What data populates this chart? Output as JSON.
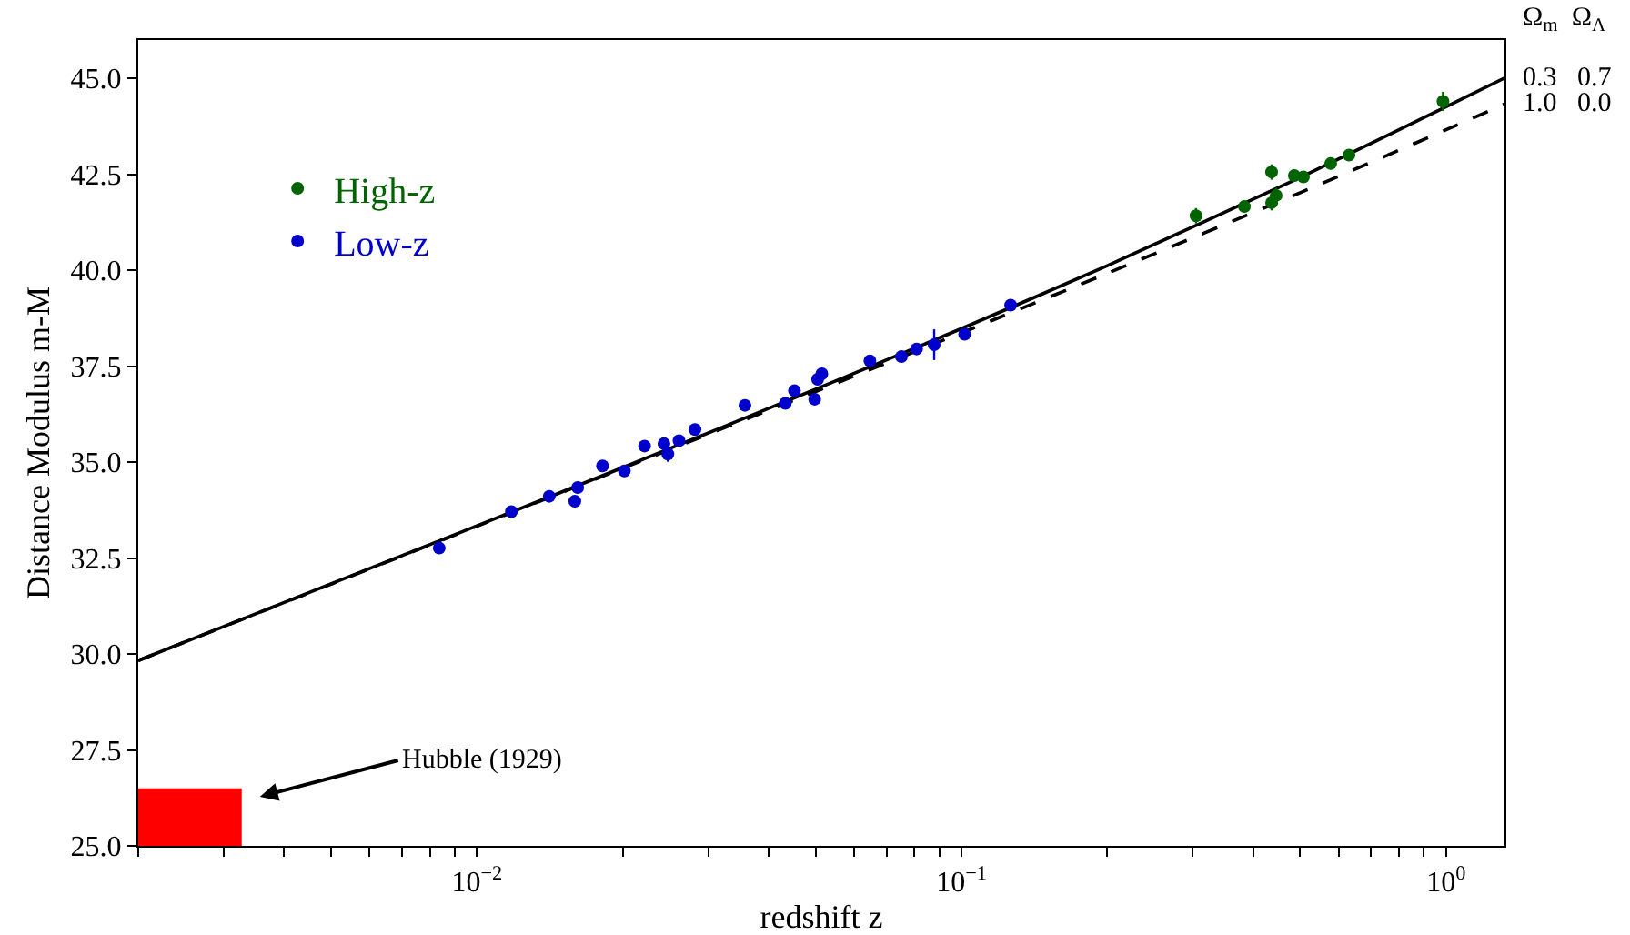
{
  "chart_data": {
    "type": "scatter",
    "xlabel": "redshift z",
    "ylabel": "Distance Modulus m-M",
    "legend_title": "Ω$_{m}$  Ω$_{Λ}$",
    "log": "x",
    "grid": false,
    "legend": "top left",
    "xlim": [
      0.002,
      1.32
    ],
    "xticks": [
      {
        "value": 0.002,
        "label": null
      },
      {
        "value": 0.003,
        "label": null
      },
      {
        "value": 0.004,
        "label": null
      },
      {
        "value": 0.005,
        "label": null
      },
      {
        "value": 0.006,
        "label": null
      },
      {
        "value": 0.007,
        "label": null
      },
      {
        "value": 0.008,
        "label": null
      },
      {
        "value": 0.009,
        "label": null
      },
      {
        "value": 0.01,
        "label": "10$^{−2}$"
      },
      {
        "value": 0.02,
        "label": null
      },
      {
        "value": 0.03,
        "label": null
      },
      {
        "value": 0.04,
        "label": null
      },
      {
        "value": 0.05,
        "label": null
      },
      {
        "value": 0.06,
        "label": null
      },
      {
        "value": 0.07,
        "label": null
      },
      {
        "value": 0.08,
        "label": null
      },
      {
        "value": 0.09,
        "label": null
      },
      {
        "value": 0.1,
        "label": "10$^{−1}$"
      },
      {
        "value": 0.2,
        "label": null
      },
      {
        "value": 0.3,
        "label": null
      },
      {
        "value": 0.4,
        "label": null
      },
      {
        "value": 0.5,
        "label": null
      },
      {
        "value": 0.6,
        "label": null
      },
      {
        "value": 0.7,
        "label": null
      },
      {
        "value": 0.8,
        "label": null
      },
      {
        "value": 0.9,
        "label": null
      },
      {
        "value": 1,
        "label": "10$^{0}$"
      }
    ],
    "ylim": [
      25,
      46
    ],
    "yticks": [
      {
        "value": 25,
        "label": "25.0"
      },
      {
        "value": 27.5,
        "label": "27.5"
      },
      {
        "value": 30,
        "label": "30.0"
      },
      {
        "value": 32.5,
        "label": "32.5"
      },
      {
        "value": 35,
        "label": "35.0"
      },
      {
        "value": 37.5,
        "label": "37.5"
      },
      {
        "value": 40,
        "label": "40.0"
      },
      {
        "value": 42.5,
        "label": "42.5"
      },
      {
        "value": 45,
        "label": "45.0"
      }
    ],
    "annotations": [
      "Hubble (1929)"
    ],
    "series": [
      {
        "type": "area",
        "marker": "none",
        "color": "#ff0000",
        "x": [
          0.002,
          0.00327
        ],
        "values": [
          26.5,
          26.5
        ]
      },
      {
        "type": "line",
        "marker": "none",
        "name": "0.3   0.7",
        "color": "#000000",
        "line_style": "solid",
        "x": [
          0.002,
          0.005,
          0.01,
          0.02,
          0.05,
          0.1,
          0.2,
          0.5,
          1,
          1.32
        ],
        "values": [
          29.83,
          31.83,
          33.34,
          34.86,
          36.9,
          38.48,
          40.12,
          42.42,
          44.26,
          45.01
        ]
      },
      {
        "type": "line",
        "marker": "none",
        "name": "1.0   0.0",
        "color": "#000000",
        "line_style": "dashed",
        "x": [
          0.002,
          0.005,
          0.01,
          0.02,
          0.05,
          0.1,
          0.2,
          0.5,
          1,
          1.32
        ],
        "values": [
          29.83,
          31.82,
          33.33,
          34.84,
          36.84,
          38.37,
          39.92,
          42.02,
          43.66,
          44.33
        ]
      },
      {
        "marker": "circle",
        "name": "High-z",
        "color": "#006400",
        "x": [
          0.3048,
          0.3836,
          0.4365,
          0.4365,
          0.446,
          0.4863,
          0.5078,
          0.578,
          0.6305,
          0.9855
        ],
        "values": [
          41.42,
          41.66,
          42.56,
          41.76,
          41.95,
          42.47,
          42.43,
          42.78,
          43.0,
          44.4
        ],
        "errors": [
          0.2,
          0.15,
          0.2,
          0.2,
          0.2,
          0.15,
          0.15,
          0.15,
          0.15,
          0.25
        ]
      },
      {
        "marker": "circle",
        "name": "Low-z",
        "color": "#0000cc",
        "x": [
          0.00836,
          0.01178,
          0.0141,
          0.01592,
          0.01614,
          0.01816,
          0.02015,
          0.02218,
          0.02432,
          0.02477,
          0.02612,
          0.02818,
          0.03573,
          0.0433,
          0.04521,
          0.04977,
          0.05047,
          0.0515,
          0.06471,
          0.07516,
          0.08078,
          0.08782,
          0.1015,
          0.1263
        ],
        "values": [
          32.76,
          33.71,
          34.11,
          33.98,
          34.34,
          34.9,
          34.77,
          35.42,
          35.48,
          35.21,
          35.56,
          35.85,
          36.48,
          36.53,
          36.86,
          36.64,
          37.16,
          37.3,
          37.64,
          37.75,
          37.95,
          38.06,
          38.33,
          39.09
        ],
        "errors": [
          0.15,
          0.15,
          0.15,
          0.15,
          0.15,
          0.15,
          0.15,
          0.15,
          0.15,
          0.2,
          0.15,
          0.15,
          0.15,
          0.15,
          0.15,
          0.15,
          0.15,
          0.15,
          0.15,
          0.15,
          0.15,
          0.4,
          0.15,
          0.15
        ]
      }
    ]
  }
}
